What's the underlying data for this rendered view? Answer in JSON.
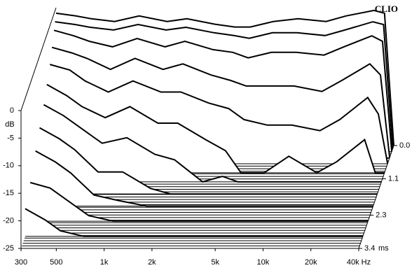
{
  "chart_data": {
    "type": "waterfall",
    "title": "CLIO",
    "y_label": "dB",
    "x_unit_label": "ms",
    "xlim": [
      300,
      40000
    ],
    "log_x": true,
    "xticks": [
      300,
      500,
      {
        "value": 1000,
        "label": "1k"
      },
      {
        "value": 2000,
        "label": "2k"
      },
      {
        "value": 5000,
        "label": "5k"
      },
      {
        "value": 10000,
        "label": "10k"
      },
      {
        "value": 20000,
        "label": "20k"
      },
      {
        "value": 40000,
        "label": "40k Hz"
      }
    ],
    "ylim": [
      -25,
      0
    ],
    "yticks": [
      0,
      -5,
      -10,
      -15,
      -20,
      -25
    ],
    "tlim": [
      0,
      3.4
    ],
    "tticks": [
      {
        "value": 0,
        "label": "0.0"
      },
      1.1,
      2.3,
      3.4
    ],
    "color": "#000000",
    "frequencies": [
      300,
      400,
      500,
      700,
      1000,
      1500,
      2000,
      3000,
      4000,
      5000,
      7000,
      10000,
      15000,
      20000,
      30000,
      35000,
      40000
    ],
    "slices": [
      {
        "time": 0,
        "values": [
          -1,
          -1.5,
          -2,
          -2.5,
          -1.5,
          -2.5,
          -2,
          -3,
          -3.5,
          -3.5,
          -2.5,
          -2,
          -2.5,
          -1.5,
          -0.5,
          -1,
          -25
        ]
      },
      {
        "time": 0.1,
        "values": [
          -2,
          -2.5,
          -3,
          -3.5,
          -2.5,
          -3.5,
          -3,
          -4,
          -4.5,
          -5,
          -4,
          -4,
          -4.5,
          -3.5,
          -2,
          -2.5,
          -25
        ]
      },
      {
        "time": 0.2,
        "values": [
          -3,
          -4,
          -5,
          -6,
          -4.5,
          -6,
          -5,
          -6.5,
          -7,
          -8,
          -7,
          -7,
          -7.5,
          -6,
          -4,
          -5,
          -25
        ]
      },
      {
        "time": 0.4,
        "values": [
          -5,
          -6,
          -7,
          -9,
          -7,
          -9,
          -8,
          -10,
          -11,
          -12,
          -12,
          -12,
          -13,
          -11,
          -8,
          -10,
          -25
        ]
      },
      {
        "time": 0.6,
        "values": [
          -7,
          -8,
          -10,
          -12,
          -10,
          -12,
          -12,
          -14,
          -15,
          -17,
          -18,
          -18,
          -19,
          -17,
          -13,
          -16,
          -25
        ]
      },
      {
        "time": 0.9,
        "values": [
          -9,
          -11,
          -13,
          -15,
          -13,
          -16,
          -16,
          -19,
          -21,
          -25,
          -25,
          -22,
          -25,
          -23,
          -19,
          -25,
          -25
        ]
      },
      {
        "time": 1.2,
        "values": [
          -11,
          -13,
          -15,
          -18,
          -17,
          -20,
          -21,
          -25,
          -24,
          -25,
          -25,
          -25,
          -25,
          -25,
          -25,
          -25,
          -25
        ]
      },
      {
        "time": 1.6,
        "values": [
          -13,
          -15,
          -17,
          -21,
          -21,
          -24,
          -25,
          -25,
          -25,
          -25,
          -25,
          -25,
          -25,
          -25,
          -25,
          -25,
          -25
        ]
      },
      {
        "time": 2.0,
        "values": [
          -15,
          -17,
          -19,
          -23,
          -24,
          -25,
          -25,
          -25,
          -25,
          -25,
          -25,
          -25,
          -25,
          -25,
          -25,
          -25,
          -25
        ]
      },
      {
        "time": 2.5,
        "values": [
          -18,
          -19,
          -21,
          -24,
          -25,
          -25,
          -25,
          -25,
          -25,
          -25,
          -25,
          -25,
          -25,
          -25,
          -25,
          -25,
          -25
        ]
      },
      {
        "time": 3.0,
        "values": [
          -20,
          -22,
          -24,
          -25,
          -25,
          -25,
          -25,
          -25,
          -25,
          -25,
          -25,
          -25,
          -25,
          -25,
          -25,
          -25,
          -25
        ]
      }
    ]
  }
}
